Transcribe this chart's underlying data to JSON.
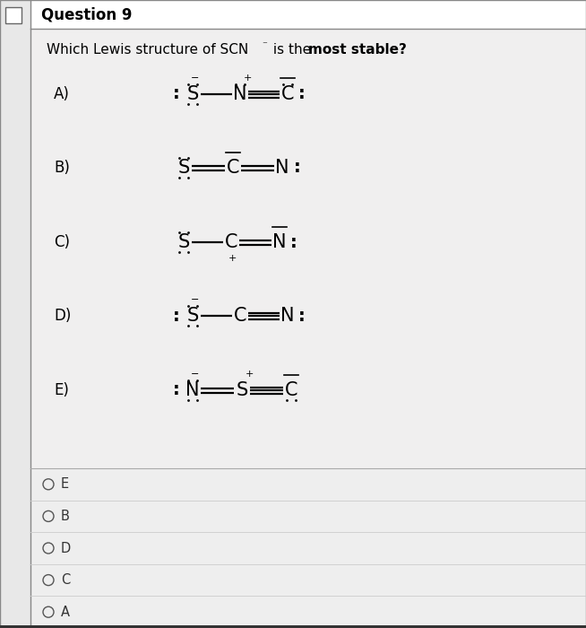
{
  "title": "Question 9",
  "bg_color": "#ffffff",
  "content_bg": "#f0eeee",
  "border_color": "#cccccc",
  "radio_labels": [
    "E",
    "B",
    "D",
    "C",
    "A"
  ],
  "fig_width": 6.54,
  "fig_height": 7.0,
  "dpi": 100
}
